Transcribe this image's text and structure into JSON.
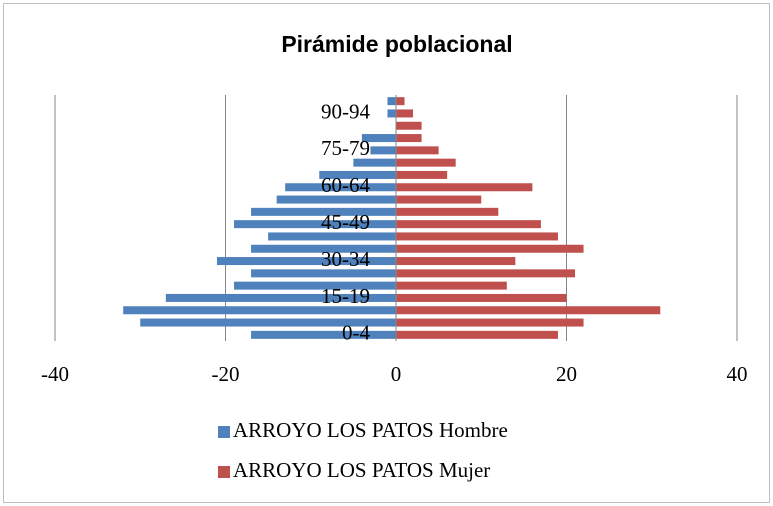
{
  "chart_data": {
    "type": "bar",
    "orientation": "horizontal",
    "title": "Pirámide poblacional",
    "categories": [
      "0-4",
      null,
      null,
      "15-19",
      null,
      null,
      "30-34",
      null,
      null,
      "45-49",
      null,
      null,
      "60-64",
      null,
      null,
      "75-79",
      null,
      null,
      "90-94",
      null
    ],
    "series": [
      {
        "name": "ARROYO LOS PATOS Hombre",
        "color": "#4f81bd",
        "values": [
          -17,
          -30,
          -32,
          -27,
          -19,
          -17,
          -21,
          -17,
          -15,
          -19,
          -17,
          -14,
          -13,
          -9,
          -5,
          -3,
          -4,
          0,
          -1,
          -1
        ]
      },
      {
        "name": "ARROYO LOS PATOS Mujer",
        "color": "#c0504d",
        "values": [
          19,
          22,
          31,
          20,
          13,
          21,
          14,
          22,
          19,
          17,
          12,
          10,
          16,
          6,
          7,
          5,
          3,
          3,
          2,
          1
        ]
      }
    ],
    "xlim": [
      -40,
      40
    ],
    "xticks": [
      -40,
      -20,
      0,
      20,
      40
    ],
    "grid": true,
    "legend": "bottom"
  }
}
